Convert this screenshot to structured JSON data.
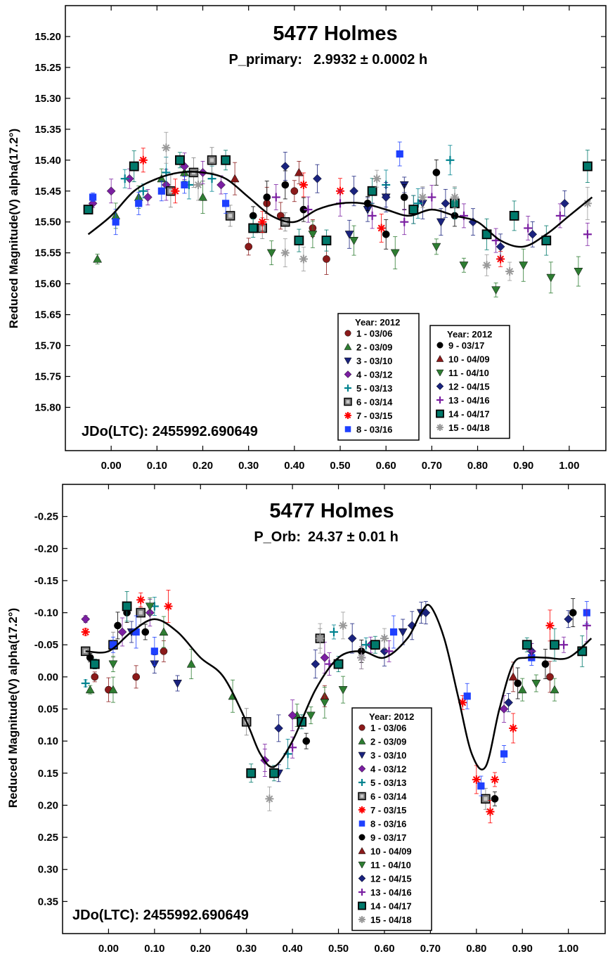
{
  "legend_symbols": [
    {
      "id": "1 - 03/06",
      "shape": "circle",
      "color": "#8b1a1a"
    },
    {
      "id": "2 - 03/09",
      "shape": "triangle-up",
      "color": "#2e7d32"
    },
    {
      "id": "3 - 03/10",
      "shape": "triangle-down",
      "color": "#1a237e"
    },
    {
      "id": "4 - 03/12",
      "shape": "diamond",
      "color": "#7b1fa2"
    },
    {
      "id": "5 - 03/13",
      "shape": "plus",
      "color": "#00838f"
    },
    {
      "id": "6 - 03/14",
      "shape": "square-hollow",
      "color": "#808080"
    },
    {
      "id": "7 - 03/15",
      "shape": "asterisk",
      "color": "#ff0000"
    },
    {
      "id": "8 - 03/16",
      "shape": "square",
      "color": "#1e40ff"
    },
    {
      "id": "9 - 03/17",
      "shape": "circle",
      "color": "#000000"
    },
    {
      "id": "10 - 04/09",
      "shape": "triangle-up",
      "color": "#8b1a1a"
    },
    {
      "id": "11 - 04/10",
      "shape": "triangle-down",
      "color": "#2e7d32"
    },
    {
      "id": "12 - 04/15",
      "shape": "diamond",
      "color": "#1a237e"
    },
    {
      "id": "13 - 04/16",
      "shape": "plus",
      "color": "#7b1fa2"
    },
    {
      "id": "14 - 04/17",
      "shape": "square-teal",
      "color": "#00796b"
    },
    {
      "id": "15 - 04/18",
      "shape": "asterisk",
      "color": "#999999"
    }
  ],
  "chart_data": [
    {
      "type": "scatter",
      "title": "5477 Holmes",
      "subtitle_label": "P_primary:",
      "subtitle_value": "2.9932 ± 0.0002 h",
      "ylabel": "Reduced Magnitude(V) alpha(17.2°)",
      "xlabel": "",
      "annotation": "JDo(LTC): 2455992.690649",
      "xlim": [
        -0.1,
        1.08
      ],
      "ylim": [
        15.15,
        15.87
      ],
      "y_inverted": true,
      "xticks": [
        "0.00",
        "0.10",
        "0.20",
        "0.30",
        "0.40",
        "0.50",
        "0.60",
        "0.70",
        "0.80",
        "0.90",
        "1.00"
      ],
      "yticks": [
        "15.20",
        "15.25",
        "15.30",
        "15.35",
        "15.40",
        "15.45",
        "15.50",
        "15.55",
        "15.60",
        "15.65",
        "15.70",
        "15.75",
        "15.80"
      ],
      "legend_title": "Year: 2012",
      "legend_groups": [
        [
          "1 - 03/06",
          "2 - 03/09",
          "3 - 03/10",
          "4 - 03/12",
          "5 - 03/13",
          "6 - 03/14",
          "7 - 03/15",
          "8 - 03/16"
        ],
        [
          "9 - 03/17",
          "10 - 04/09",
          "11 - 04/10",
          "12 - 04/15",
          "13 - 04/16",
          "14 - 04/17",
          "15 - 04/18"
        ]
      ],
      "fit_curve": {
        "x": [
          -0.05,
          0.0,
          0.05,
          0.1,
          0.15,
          0.2,
          0.25,
          0.3,
          0.35,
          0.4,
          0.45,
          0.5,
          0.55,
          0.6,
          0.65,
          0.7,
          0.75,
          0.8,
          0.85,
          0.9,
          0.95,
          1.0,
          1.05
        ],
        "y": [
          15.52,
          15.49,
          15.45,
          15.43,
          15.42,
          15.42,
          15.43,
          15.46,
          15.49,
          15.5,
          15.48,
          15.47,
          15.47,
          15.48,
          15.49,
          15.48,
          15.49,
          15.5,
          15.53,
          15.54,
          15.52,
          15.49,
          15.46
        ]
      },
      "series": [
        {
          "name": "1 - 03/06",
          "x": [
            0.3,
            0.34,
            0.37,
            0.4,
            0.44,
            0.47
          ],
          "y": [
            15.54,
            15.47,
            15.49,
            15.45,
            15.51,
            15.56
          ]
        },
        {
          "name": "2 - 03/09",
          "x": [
            -0.03,
            0.01,
            0.06,
            0.11,
            0.16,
            0.2
          ],
          "y": [
            15.56,
            15.49,
            15.46,
            15.43,
            15.42,
            15.46
          ]
        },
        {
          "name": "3 - 03/10",
          "x": [
            0.52,
            0.56,
            0.6,
            0.64,
            0.68,
            0.72
          ],
          "y": [
            15.52,
            15.48,
            15.46,
            15.44,
            15.47,
            15.5
          ]
        },
        {
          "name": "4 - 03/12",
          "x": [
            -0.04,
            0.0,
            0.04,
            0.08,
            0.12,
            0.16,
            0.2,
            0.24
          ],
          "y": [
            15.47,
            15.45,
            15.43,
            15.46,
            15.44,
            15.41,
            15.42,
            15.44
          ]
        },
        {
          "name": "5 - 03/13",
          "x": [
            0.03,
            0.07,
            0.12,
            0.17,
            0.22,
            0.6,
            0.67,
            0.74
          ],
          "y": [
            15.43,
            15.45,
            15.42,
            15.44,
            15.43,
            15.44,
            15.47,
            15.4
          ]
        },
        {
          "name": "6 - 03/14",
          "x": [
            0.13,
            0.18,
            0.22,
            0.26,
            0.33,
            0.38
          ],
          "y": [
            15.45,
            15.42,
            15.4,
            15.49,
            15.51,
            15.5
          ]
        },
        {
          "name": "7 - 03/15",
          "x": [
            0.07,
            0.14,
            0.33,
            0.42,
            0.5,
            0.59,
            0.85
          ],
          "y": [
            15.4,
            15.45,
            15.5,
            15.44,
            15.45,
            15.51,
            15.56
          ]
        },
        {
          "name": "8 - 03/16",
          "x": [
            -0.04,
            0.01,
            0.06,
            0.11,
            0.16,
            0.25,
            0.63
          ],
          "y": [
            15.46,
            15.5,
            15.47,
            15.45,
            15.44,
            15.47,
            15.39
          ]
        },
        {
          "name": "9 - 03/17",
          "x": [
            0.31,
            0.34,
            0.38,
            0.42,
            0.56,
            0.6,
            0.64,
            0.71,
            0.75
          ],
          "y": [
            15.49,
            15.46,
            15.44,
            15.48,
            15.47,
            15.52,
            15.46,
            15.42,
            15.49
          ]
        },
        {
          "name": "10 - 04/09",
          "x": [
            0.27,
            0.41
          ],
          "y": [
            15.43,
            15.42
          ]
        },
        {
          "name": "11 - 04/10",
          "x": [
            0.35,
            0.44,
            0.53,
            0.62,
            0.71,
            0.77,
            0.84,
            0.9,
            0.96,
            1.02
          ],
          "y": [
            15.55,
            15.52,
            15.53,
            15.55,
            15.54,
            15.57,
            15.61,
            15.57,
            15.59,
            15.58
          ]
        },
        {
          "name": "12 - 04/15",
          "x": [
            0.38,
            0.45,
            0.53,
            0.6,
            0.66,
            0.73,
            0.79,
            0.85,
            0.92,
            0.99
          ],
          "y": [
            15.41,
            15.43,
            15.45,
            15.46,
            15.48,
            15.47,
            15.5,
            15.54,
            15.52,
            15.47
          ]
        },
        {
          "name": "13 - 04/16",
          "x": [
            0.36,
            0.43,
            0.5,
            0.57,
            0.64,
            0.7,
            0.77,
            0.84,
            0.91,
            0.98,
            1.04
          ],
          "y": [
            15.46,
            15.48,
            15.47,
            15.49,
            15.5,
            15.46,
            15.49,
            15.53,
            15.51,
            15.49,
            15.52
          ]
        },
        {
          "name": "14 - 04/17",
          "x": [
            -0.05,
            0.05,
            0.15,
            0.25,
            0.31,
            0.41,
            0.47,
            0.57,
            0.66,
            0.75,
            0.82,
            0.88,
            0.95,
            1.04
          ],
          "y": [
            15.48,
            15.41,
            15.4,
            15.4,
            15.51,
            15.53,
            15.53,
            15.45,
            15.48,
            15.47,
            15.52,
            15.49,
            15.53,
            15.41
          ]
        },
        {
          "name": "15 - 04/18",
          "x": [
            0.12,
            0.19,
            0.38,
            0.42,
            0.58,
            0.68,
            0.75,
            0.82,
            0.87,
            1.04
          ],
          "y": [
            15.38,
            15.44,
            15.55,
            15.56,
            15.43,
            15.46,
            15.46,
            15.57,
            15.58,
            15.47
          ]
        }
      ]
    },
    {
      "type": "scatter",
      "title": "5477 Holmes",
      "subtitle_label": "P_Orb:",
      "subtitle_value": "24.37 ± 0.01 h",
      "ylabel": "Reduced Magnitude(V) alpha(17.2°)",
      "xlabel": "",
      "annotation": "JDo(LTC): 2455992.690649",
      "xlim": [
        -0.1,
        1.08
      ],
      "ylim": [
        -0.3,
        0.4
      ],
      "y_inverted": true,
      "xticks": [
        "0.00",
        "0.10",
        "0.20",
        "0.30",
        "0.40",
        "0.50",
        "0.60",
        "0.70",
        "0.80",
        "0.90",
        "1.00"
      ],
      "yticks": [
        "-0.25",
        "-0.20",
        "-0.15",
        "-0.10",
        "-0.05",
        "0.00",
        "0.05",
        "0.10",
        "0.15",
        "0.20",
        "0.25",
        "0.30",
        "0.35"
      ],
      "legend_title": "Year: 2012",
      "legend_groups": [
        [
          "1 - 03/06",
          "2 - 03/09",
          "3 - 03/10",
          "4 - 03/12",
          "5 - 03/13",
          "6 - 03/14",
          "7 - 03/15",
          "8 - 03/16",
          "9 - 03/17",
          "10 - 04/09",
          "11 - 04/10",
          "12 - 04/15",
          "13 - 04/16",
          "14 - 04/17",
          "15 - 04/18"
        ]
      ],
      "fit_curve": {
        "x": [
          -0.05,
          0.0,
          0.05,
          0.1,
          0.15,
          0.2,
          0.25,
          0.3,
          0.33,
          0.36,
          0.4,
          0.45,
          0.5,
          0.55,
          0.6,
          0.65,
          0.68,
          0.7,
          0.73,
          0.76,
          0.79,
          0.82,
          0.85,
          0.88,
          0.91,
          0.95,
          1.0,
          1.05
        ],
        "y": [
          -0.04,
          -0.04,
          -0.07,
          -0.09,
          -0.07,
          -0.03,
          0.0,
          0.07,
          0.12,
          0.14,
          0.1,
          0.02,
          -0.03,
          -0.04,
          -0.03,
          -0.06,
          -0.1,
          -0.11,
          -0.06,
          0.03,
          0.12,
          0.14,
          0.05,
          -0.02,
          -0.03,
          -0.03,
          -0.03,
          -0.06
        ]
      },
      "series": [
        {
          "name": "1 - 03/06",
          "x": [
            -0.03,
            0.0,
            0.06,
            0.12,
            0.96
          ],
          "y": [
            0.0,
            0.02,
            0.0,
            -0.04,
            0.0
          ]
        },
        {
          "name": "2 - 03/09",
          "x": [
            -0.04,
            0.01,
            0.12,
            0.18,
            0.27,
            0.41,
            0.9,
            0.97
          ],
          "y": [
            0.02,
            0.02,
            -0.07,
            -0.02,
            0.03,
            0.06,
            0.02,
            0.02
          ]
        },
        {
          "name": "3 - 03/10",
          "x": [
            0.05,
            0.1,
            0.15,
            0.37,
            0.64,
            0.68
          ],
          "y": [
            -0.07,
            -0.02,
            0.01,
            0.15,
            -0.07,
            -0.1
          ]
        },
        {
          "name": "4 - 03/12",
          "x": [
            -0.05,
            0.03,
            0.09,
            0.34,
            0.4,
            0.47,
            0.57,
            0.86
          ],
          "y": [
            -0.09,
            -0.07,
            -0.1,
            0.13,
            0.06,
            -0.03,
            -0.05,
            0.05
          ]
        },
        {
          "name": "5 - 03/13",
          "x": [
            -0.05,
            0.1,
            0.39,
            0.49,
            0.56
          ],
          "y": [
            0.01,
            -0.11,
            0.12,
            -0.07,
            -0.05
          ]
        },
        {
          "name": "6 - 03/14",
          "x": [
            -0.05,
            0.01,
            0.07,
            0.3,
            0.46,
            0.82
          ],
          "y": [
            -0.04,
            -0.05,
            -0.1,
            0.07,
            -0.06,
            0.19
          ]
        },
        {
          "name": "7 - 03/15",
          "x": [
            -0.05,
            0.07,
            0.13,
            0.77,
            0.8,
            0.83,
            0.84,
            0.88,
            0.96
          ],
          "y": [
            -0.07,
            -0.12,
            -0.11,
            0.04,
            0.16,
            0.21,
            0.16,
            0.08,
            -0.08
          ]
        },
        {
          "name": "8 - 03/16",
          "x": [
            0.01,
            0.06,
            0.1,
            0.62,
            0.78,
            0.81,
            0.86,
            0.92,
            1.04
          ],
          "y": [
            -0.05,
            -0.07,
            -0.04,
            -0.07,
            0.03,
            0.17,
            0.12,
            -0.03,
            -0.1
          ]
        },
        {
          "name": "9 - 03/17",
          "x": [
            -0.04,
            0.02,
            0.04,
            0.08,
            0.43,
            0.55,
            0.84,
            0.89,
            0.95,
            1.01
          ],
          "y": [
            -0.03,
            -0.08,
            -0.1,
            -0.07,
            0.1,
            -0.04,
            0.19,
            0.01,
            -0.02,
            -0.1
          ]
        },
        {
          "name": "10 - 04/09",
          "x": [
            0.47,
            0.88
          ],
          "y": [
            0.03,
            0.0
          ]
        },
        {
          "name": "11 - 04/10",
          "x": [
            0.01,
            0.09,
            0.44,
            0.47,
            0.51,
            0.93
          ],
          "y": [
            -0.02,
            -0.11,
            0.06,
            0.04,
            0.02,
            0.01
          ]
        },
        {
          "name": "12 - 04/15",
          "x": [
            0.37,
            0.45,
            0.53,
            0.6,
            0.66,
            0.69,
            0.87,
            0.92,
            1.0
          ],
          "y": [
            0.08,
            -0.02,
            -0.06,
            -0.04,
            -0.08,
            -0.1,
            0.04,
            -0.04,
            -0.09
          ]
        },
        {
          "name": "13 - 04/16",
          "x": [
            0.34,
            0.4,
            0.48,
            0.55,
            0.61,
            0.92,
            0.99,
            1.04
          ],
          "y": [
            0.13,
            0.11,
            -0.02,
            -0.03,
            -0.04,
            -0.04,
            -0.05,
            -0.08
          ]
        },
        {
          "name": "14 - 04/17",
          "x": [
            -0.03,
            0.04,
            0.31,
            0.36,
            0.42,
            0.5,
            0.58,
            0.91,
            0.97,
            1.03
          ],
          "y": [
            -0.02,
            -0.11,
            0.15,
            0.15,
            0.07,
            -0.02,
            -0.05,
            -0.05,
            -0.05,
            -0.04
          ]
        },
        {
          "name": "15 - 04/18",
          "x": [
            0.35,
            0.46,
            0.51,
            0.55,
            0.6
          ],
          "y": [
            0.19,
            -0.06,
            -0.08,
            -0.03,
            -0.06
          ]
        }
      ]
    }
  ]
}
